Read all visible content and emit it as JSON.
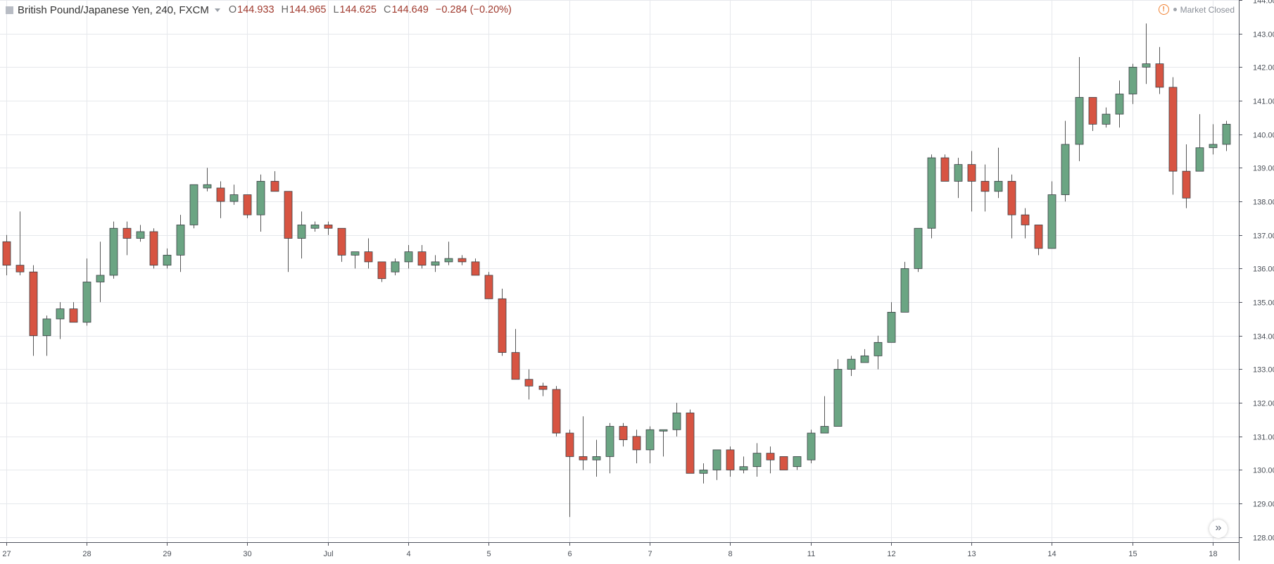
{
  "header": {
    "symbol_title": "British Pound/Japanese Yen, 240, FXCM",
    "open_label": "O",
    "open_value": "144.933",
    "high_label": "H",
    "high_value": "144.965",
    "low_label": "L",
    "low_value": "144.625",
    "close_label": "C",
    "close_value": "144.649",
    "change": "−0.284 (−0.20%)"
  },
  "market_status": {
    "icon": "warning-icon",
    "label": "Market Closed"
  },
  "scroll_button": {
    "icon": "double-chevron-right-icon",
    "glyph": "»"
  },
  "colors": {
    "up": "#6ba583",
    "down": "#d75442",
    "grid": "#e6e8ec",
    "axis_text": "#4a4f57",
    "wick": "#555555"
  },
  "chart_data": {
    "type": "candlestick",
    "title": "British Pound/Japanese Yen, 240, FXCM",
    "y_range": [
      127.85,
      144.0
    ],
    "y_ticks": [
      "128.000",
      "129.000",
      "130.000",
      "131.000",
      "132.000",
      "133.000",
      "134.000",
      "135.000",
      "136.000",
      "137.000",
      "138.000",
      "139.000",
      "140.000",
      "141.000",
      "142.000",
      "143.000",
      "144.000"
    ],
    "x_tick_labels": [
      "27",
      "28",
      "29",
      "30",
      "Jul",
      "4",
      "5",
      "6",
      "7",
      "8",
      "11",
      "12",
      "13",
      "14",
      "15",
      "18"
    ],
    "x_tick_index": [
      0,
      6,
      12,
      18,
      24,
      30,
      36,
      42,
      48,
      54,
      60,
      66,
      72,
      78,
      84,
      90
    ],
    "grid": true,
    "candles": [
      [
        136.8,
        137.0,
        135.8,
        136.1
      ],
      [
        136.1,
        137.7,
        135.8,
        135.9
      ],
      [
        135.9,
        136.1,
        133.4,
        134.0
      ],
      [
        134.0,
        134.6,
        133.4,
        134.5
      ],
      [
        134.5,
        135.0,
        133.9,
        134.8
      ],
      [
        134.8,
        135.0,
        134.4,
        134.4
      ],
      [
        134.4,
        136.3,
        134.3,
        135.6
      ],
      [
        135.6,
        136.8,
        135.0,
        135.8
      ],
      [
        135.8,
        137.4,
        135.7,
        137.2
      ],
      [
        137.2,
        137.4,
        136.4,
        136.9
      ],
      [
        136.9,
        137.3,
        136.8,
        137.1
      ],
      [
        137.1,
        137.2,
        136.0,
        136.1
      ],
      [
        136.1,
        136.6,
        136.0,
        136.4
      ],
      [
        136.4,
        137.6,
        135.9,
        137.3
      ],
      [
        137.3,
        138.5,
        137.2,
        138.5
      ],
      [
        138.4,
        139.0,
        138.3,
        138.5
      ],
      [
        138.4,
        138.6,
        137.5,
        138.0
      ],
      [
        138.0,
        138.5,
        137.9,
        138.2
      ],
      [
        138.2,
        138.2,
        137.5,
        137.6
      ],
      [
        137.6,
        138.8,
        137.1,
        138.6
      ],
      [
        138.6,
        138.9,
        138.3,
        138.3
      ],
      [
        138.3,
        138.3,
        135.9,
        136.9
      ],
      [
        136.9,
        137.7,
        136.3,
        137.3
      ],
      [
        137.2,
        137.4,
        137.1,
        137.3
      ],
      [
        137.3,
        137.4,
        137.0,
        137.2
      ],
      [
        137.2,
        137.2,
        136.2,
        136.4
      ],
      [
        136.4,
        136.4,
        136.0,
        136.5
      ],
      [
        136.5,
        136.9,
        136.0,
        136.2
      ],
      [
        136.2,
        136.2,
        135.6,
        135.7
      ],
      [
        135.9,
        136.3,
        135.8,
        136.2
      ],
      [
        136.2,
        136.7,
        136.0,
        136.5
      ],
      [
        136.5,
        136.7,
        136.0,
        136.1
      ],
      [
        136.1,
        136.4,
        135.9,
        136.2
      ],
      [
        136.2,
        136.8,
        136.1,
        136.3
      ],
      [
        136.3,
        136.4,
        136.1,
        136.2
      ],
      [
        136.2,
        136.3,
        135.8,
        135.8
      ],
      [
        135.8,
        135.9,
        135.1,
        135.1
      ],
      [
        135.1,
        135.4,
        133.4,
        133.5
      ],
      [
        133.5,
        134.2,
        132.7,
        132.7
      ],
      [
        132.7,
        133.0,
        132.1,
        132.5
      ],
      [
        132.5,
        132.6,
        132.2,
        132.4
      ],
      [
        132.4,
        132.5,
        131.0,
        131.1
      ],
      [
        131.1,
        131.2,
        128.6,
        130.4
      ],
      [
        130.4,
        131.6,
        130.0,
        130.3
      ],
      [
        130.3,
        130.9,
        129.8,
        130.4
      ],
      [
        130.4,
        131.4,
        129.9,
        131.3
      ],
      [
        131.3,
        131.4,
        130.7,
        130.9
      ],
      [
        131.0,
        131.2,
        130.2,
        130.6
      ],
      [
        130.6,
        131.3,
        130.2,
        131.2
      ],
      [
        131.2,
        131.2,
        130.4,
        131.2
      ],
      [
        131.2,
        132.0,
        131.0,
        131.7
      ],
      [
        131.7,
        131.8,
        129.9,
        129.9
      ],
      [
        129.9,
        130.2,
        129.6,
        130.0
      ],
      [
        130.0,
        130.6,
        129.7,
        130.6
      ],
      [
        130.6,
        130.7,
        129.8,
        130.0
      ],
      [
        130.0,
        130.4,
        129.9,
        130.1
      ],
      [
        130.1,
        130.8,
        129.8,
        130.5
      ],
      [
        130.5,
        130.7,
        129.9,
        130.3
      ],
      [
        130.4,
        130.4,
        130.0,
        130.0
      ],
      [
        130.1,
        130.4,
        130.0,
        130.4
      ],
      [
        130.3,
        131.2,
        130.2,
        131.1
      ],
      [
        131.1,
        132.2,
        131.1,
        131.3
      ],
      [
        131.3,
        133.3,
        131.3,
        133.0
      ],
      [
        133.0,
        133.4,
        132.8,
        133.3
      ],
      [
        133.2,
        133.6,
        133.2,
        133.4
      ],
      [
        133.4,
        134.0,
        133.0,
        133.8
      ],
      [
        133.8,
        135.0,
        133.8,
        134.7
      ],
      [
        134.7,
        136.2,
        134.7,
        136.0
      ],
      [
        136.0,
        137.2,
        135.9,
        137.2
      ],
      [
        137.2,
        139.4,
        136.9,
        139.3
      ],
      [
        139.3,
        139.4,
        138.6,
        138.6
      ],
      [
        138.6,
        139.3,
        138.1,
        139.1
      ],
      [
        139.1,
        139.5,
        137.7,
        138.6
      ],
      [
        138.6,
        139.1,
        137.7,
        138.3
      ],
      [
        138.3,
        139.6,
        138.1,
        138.6
      ],
      [
        138.6,
        138.8,
        136.9,
        137.6
      ],
      [
        137.6,
        137.8,
        136.9,
        137.3
      ],
      [
        137.3,
        137.3,
        136.4,
        136.6
      ],
      [
        136.6,
        138.6,
        136.6,
        138.2
      ],
      [
        138.2,
        140.4,
        138.0,
        139.7
      ],
      [
        139.7,
        142.3,
        139.2,
        141.1
      ],
      [
        141.1,
        141.1,
        140.1,
        140.3
      ],
      [
        140.3,
        140.8,
        140.2,
        140.6
      ],
      [
        140.6,
        141.6,
        140.2,
        141.2
      ],
      [
        141.2,
        142.1,
        140.9,
        142.0
      ],
      [
        142.0,
        143.3,
        141.5,
        142.1
      ],
      [
        142.1,
        142.6,
        141.2,
        141.4
      ],
      [
        141.4,
        141.7,
        138.2,
        138.9
      ],
      [
        138.9,
        139.7,
        137.8,
        138.1
      ],
      [
        138.9,
        140.6,
        138.9,
        139.6
      ],
      [
        139.6,
        140.3,
        139.4,
        139.7
      ],
      [
        139.7,
        140.4,
        139.5,
        140.3
      ]
    ]
  }
}
